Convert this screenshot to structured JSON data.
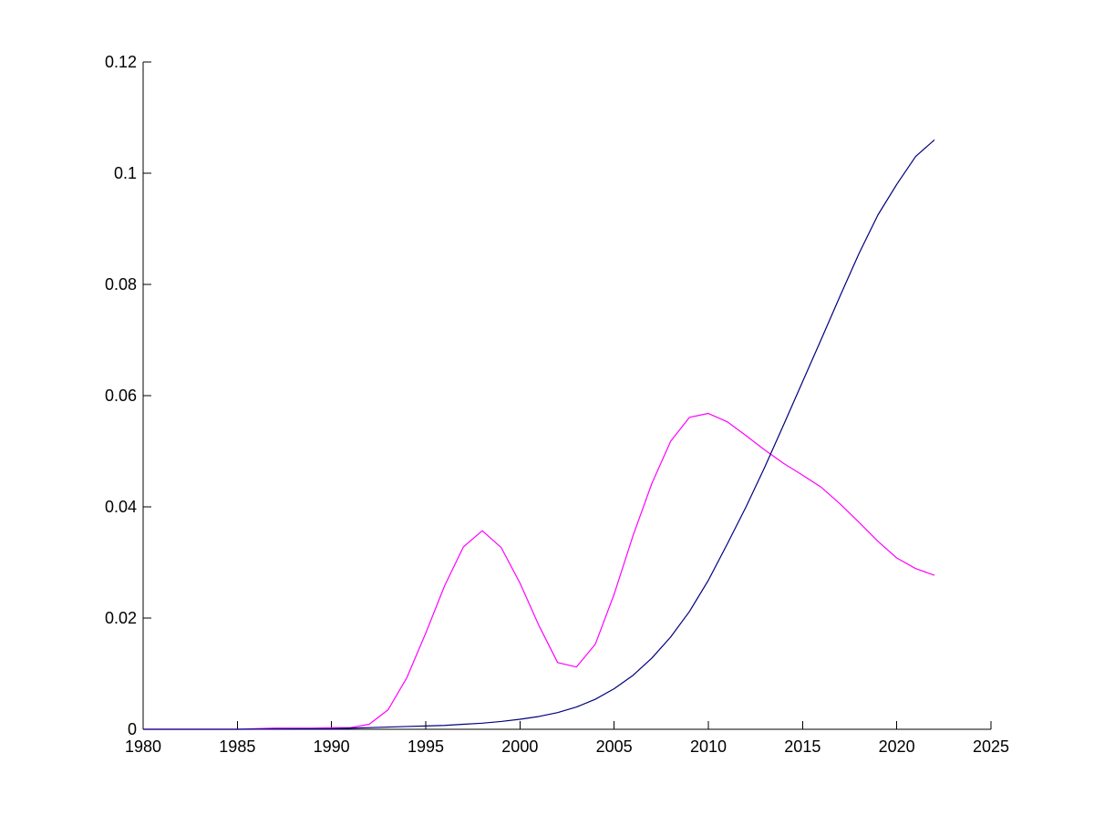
{
  "chart_data": {
    "type": "line",
    "title": "",
    "xlabel": "",
    "ylabel": "",
    "xlim": [
      1980,
      2025
    ],
    "ylim": [
      0,
      0.12
    ],
    "xticks": [
      1980,
      1985,
      1990,
      1995,
      2000,
      2005,
      2010,
      2015,
      2020,
      2025
    ],
    "xtick_labels": [
      "1980",
      "1985",
      "1990",
      "1995",
      "2000",
      "2005",
      "2010",
      "2015",
      "2020",
      "2025"
    ],
    "yticks": [
      0,
      0.02,
      0.04,
      0.06,
      0.08,
      0.1,
      0.12
    ],
    "ytick_labels": [
      "0",
      "0.02",
      "0.04",
      "0.06",
      "0.08",
      "0.1",
      "0.12"
    ],
    "grid": false,
    "legend": "none",
    "axes_box": "left-bottom",
    "series": [
      {
        "color": "#ff00ff",
        "x": [
          1980,
          1985,
          1986,
          1987,
          1988,
          1989,
          1990,
          1991,
          1992,
          1993,
          1994,
          1995,
          1996,
          1997,
          1998,
          1999,
          2000,
          2001,
          2002,
          2003,
          2004,
          2005,
          2006,
          2007,
          2008,
          2009,
          2010,
          2011,
          2012,
          2013,
          2014,
          2015,
          2016,
          2017,
          2018,
          2019,
          2020,
          2021,
          2022
        ],
        "y": [
          0,
          0,
          0.0001,
          0.0002,
          0.0002,
          0.0002,
          0.0003,
          0.0003,
          0.0009,
          0.0035,
          0.0093,
          0.0173,
          0.0258,
          0.0328,
          0.0357,
          0.0327,
          0.0263,
          0.0187,
          0.012,
          0.0112,
          0.0153,
          0.0243,
          0.0348,
          0.0442,
          0.0518,
          0.0561,
          0.0568,
          0.0553,
          0.0528,
          0.0502,
          0.0478,
          0.0457,
          0.0435,
          0.0405,
          0.0372,
          0.0338,
          0.0308,
          0.0289,
          0.0277
        ]
      },
      {
        "color": "#00007f",
        "x": [
          1980,
          1985,
          1990,
          1991,
          1992,
          1993,
          1994,
          1995,
          1996,
          1997,
          1998,
          1999,
          2000,
          2001,
          2002,
          2003,
          2004,
          2005,
          2006,
          2007,
          2008,
          2009,
          2010,
          2011,
          2012,
          2013,
          2014,
          2015,
          2016,
          2017,
          2018,
          2019,
          2020,
          2021,
          2022
        ],
        "y": [
          0,
          0,
          0.0001,
          0.0002,
          0.0003,
          0.0004,
          0.0005,
          0.0006,
          0.0007,
          0.0009,
          0.0011,
          0.0014,
          0.0018,
          0.0023,
          0.003,
          0.004,
          0.0054,
          0.0073,
          0.0097,
          0.0128,
          0.0166,
          0.0212,
          0.0268,
          0.0333,
          0.04,
          0.0472,
          0.0548,
          0.0625,
          0.0702,
          0.078,
          0.0856,
          0.0925,
          0.098,
          0.103,
          0.106
        ]
      }
    ]
  }
}
